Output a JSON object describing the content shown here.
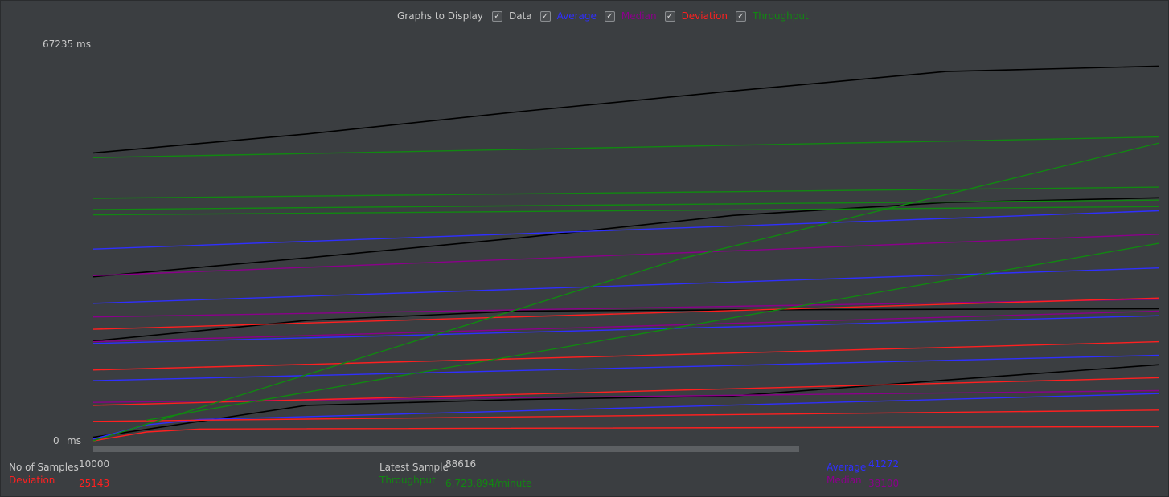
{
  "legend": {
    "title": "Graphs to Display",
    "items": [
      {
        "label": "Data",
        "color": "#c8c8c8",
        "checked": true
      },
      {
        "label": "Average",
        "color": "#2f2fff",
        "checked": true
      },
      {
        "label": "Median",
        "color": "#8b008b",
        "checked": true
      },
      {
        "label": "Deviation",
        "color": "#ff2020",
        "checked": true
      },
      {
        "label": "Throughput",
        "color": "#118811",
        "checked": true
      }
    ],
    "check_glyph": "✓"
  },
  "axis": {
    "y_max_label": "67235",
    "y_min_label": "0",
    "unit": "ms"
  },
  "stats": {
    "samples_label": "No of Samples",
    "samples_value": "10000",
    "deviation_label": "Deviation",
    "deviation_value": "25143",
    "latest_label": "Latest Sample",
    "latest_value": "88616",
    "throughput_label": "Throughput",
    "throughput_value": "6,723.894/minute",
    "average_label": "Average",
    "average_value": "41272",
    "median_label": "Median",
    "median_value": "38100"
  },
  "colors": {
    "background": "#3b3e41",
    "data": "#000000",
    "data_highlight": "#ffff33",
    "average": "#2f2fff",
    "median": "#8b008b",
    "deviation": "#ff2020",
    "throughput": "#118811"
  },
  "chart_data": {
    "type": "line",
    "ylim": [
      0,
      67235
    ],
    "xlim": [
      0,
      10000
    ],
    "y_unit": "ms",
    "grid": false,
    "series": [
      {
        "name": "Data",
        "color": "#000000",
        "lines": [
          {
            "x": [
              0,
              2000,
              4000,
              6000,
              8000,
              10000
            ],
            "y": [
              48800,
              52000,
              55800,
              59300,
              62600,
              63500
            ]
          },
          {
            "x": [
              0,
              2000,
              4000,
              6000,
              8000,
              10000
            ],
            "y": [
              27800,
              31000,
              34400,
              38200,
              40400,
              41200
            ]
          },
          {
            "x": [
              0,
              2000,
              4000,
              6000,
              8000,
              10000
            ],
            "y": [
              16900,
              20400,
              22000,
              22200,
              22300,
              22400
            ]
          },
          {
            "x": [
              0,
              2000,
              4000,
              6000,
              8000,
              10000
            ],
            "y": [
              600,
              6000,
              7000,
              7600,
              10300,
              12900
            ]
          }
        ]
      },
      {
        "name": "Average",
        "color": "#2f2fff",
        "lines": [
          {
            "x": [
              0,
              10000
            ],
            "y": [
              32500,
              39000
            ]
          },
          {
            "x": [
              0,
              10000
            ],
            "y": [
              23300,
              29300
            ]
          },
          {
            "x": [
              0,
              10000
            ],
            "y": [
              16500,
              21200
            ]
          },
          {
            "x": [
              0,
              10000
            ],
            "y": [
              10200,
              14500
            ]
          },
          {
            "x": [
              0,
              500,
              1000,
              10000
            ],
            "y": [
              300,
              2700,
              3600,
              8000
            ]
          }
        ]
      },
      {
        "name": "Median",
        "color": "#8b008b",
        "lines": [
          {
            "x": [
              0,
              10000
            ],
            "y": [
              28000,
              35000
            ]
          },
          {
            "x": [
              0,
              10000
            ],
            "y": [
              21000,
              24000
            ]
          },
          {
            "x": [
              0,
              10000
            ],
            "y": [
              16800,
              22000
            ]
          },
          {
            "x": [
              0,
              10000
            ],
            "y": [
              6500,
              8500
            ]
          }
        ]
      },
      {
        "name": "Deviation",
        "color": "#ff2020",
        "lines": [
          {
            "x": [
              0,
              10000
            ],
            "y": [
              18900,
              24200
            ]
          },
          {
            "x": [
              0,
              10000
            ],
            "y": [
              12000,
              16800
            ]
          },
          {
            "x": [
              0,
              10000
            ],
            "y": [
              6000,
              10700
            ]
          },
          {
            "x": [
              0,
              10000
            ],
            "y": [
              3300,
              5200
            ]
          },
          {
            "x": [
              0,
              500,
              1000,
              10000
            ],
            "y": [
              0,
              1500,
              2000,
              2400
            ]
          }
        ]
      },
      {
        "name": "Throughput",
        "color": "#118811",
        "lines": [
          {
            "x": [
              0,
              10000
            ],
            "y": [
              48000,
              51500
            ]
          },
          {
            "x": [
              0,
              10000
            ],
            "y": [
              41100,
              43000
            ]
          },
          {
            "x": [
              0,
              10000
            ],
            "y": [
              39200,
              40800
            ]
          },
          {
            "x": [
              0,
              10000
            ],
            "y": [
              38300,
              39700
            ]
          },
          {
            "x": [
              0,
              5500,
              10000
            ],
            "y": [
              0,
              30800,
              50500
            ]
          },
          {
            "x": [
              500,
              10000
            ],
            "y": [
              3500,
              33500
            ]
          }
        ]
      }
    ]
  }
}
